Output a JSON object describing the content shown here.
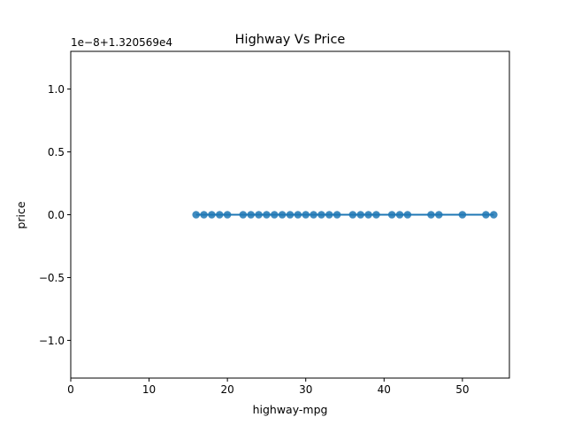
{
  "chart_data": {
    "type": "scatter",
    "title": "Highway Vs Price",
    "xlabel": "highway-mpg",
    "ylabel": "price",
    "offset_label": "1e−8+1.320569e4",
    "xlim": [
      0,
      56
    ],
    "ylim": [
      -1.3,
      1.3
    ],
    "xticks": [
      0,
      10,
      20,
      30,
      40,
      50
    ],
    "xtick_labels": [
      "0",
      "10",
      "20",
      "30",
      "40",
      "50"
    ],
    "yticks": [
      -1.0,
      -0.5,
      0.0,
      0.5,
      1.0
    ],
    "ytick_labels": [
      "−1.0",
      "−0.5",
      "0.0",
      "0.5",
      "1.0"
    ],
    "grid": false,
    "legend": "none",
    "series": [
      {
        "x": [
          16,
          17,
          18,
          19,
          20,
          22,
          23,
          24,
          25,
          26,
          27,
          28,
          29,
          30,
          31,
          32,
          33,
          34,
          36,
          37,
          38,
          39,
          41,
          42,
          43,
          46,
          47,
          50,
          53,
          54
        ],
        "y": [
          0,
          0,
          0,
          0,
          0,
          0,
          0,
          0,
          0,
          0,
          0,
          0,
          0,
          0,
          0,
          0,
          0,
          0,
          0,
          0,
          0,
          0,
          0,
          0,
          0,
          0,
          0,
          0,
          0,
          0
        ],
        "color": "#1f77b4"
      }
    ],
    "regression_line": {
      "x": [
        16,
        54
      ],
      "y": [
        0,
        0
      ],
      "color": "#1f77b4"
    }
  }
}
